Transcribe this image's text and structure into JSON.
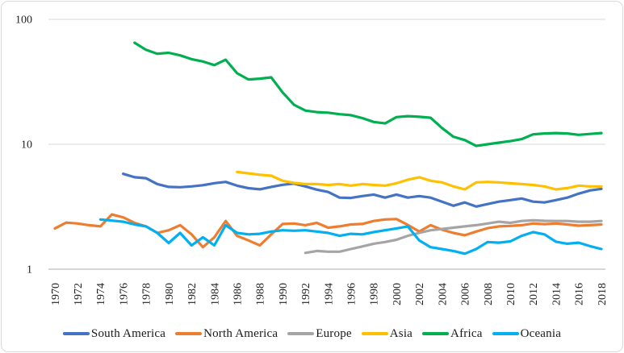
{
  "colors": {
    "background": "#ffffff",
    "frame_border": "#d9d9d9",
    "gridline": "#d9d9d9",
    "axis_line": "#bfbfbf",
    "tick_text": "#1f1f1f"
  },
  "chart_data": {
    "type": "line",
    "title": "",
    "x_axis": {
      "label": "",
      "range": [
        1970,
        2018
      ],
      "tick_step": 2,
      "tick_labels": [
        "1970",
        "1972",
        "1974",
        "1976",
        "1978",
        "1980",
        "1982",
        "1984",
        "1986",
        "1988",
        "1990",
        "1992",
        "1994",
        "1996",
        "1998",
        "2000",
        "2002",
        "2004",
        "2006",
        "2008",
        "2010",
        "2012",
        "2014",
        "2016",
        "2018"
      ],
      "tick_label_rotation": -90
    },
    "y_axis": {
      "label": "",
      "scale": "log10",
      "range": [
        1,
        100
      ],
      "tick_labels": [
        "1",
        "10",
        "100"
      ]
    },
    "grid": {
      "horizontal": true,
      "vertical": false
    },
    "legend": {
      "position": "bottom"
    },
    "series": [
      {
        "name": "South America",
        "color": "#4472C4",
        "start_year": 1976,
        "values": [
          5.8,
          5.45,
          5.35,
          4.8,
          4.56,
          4.53,
          4.6,
          4.7,
          4.88,
          5.0,
          4.66,
          4.45,
          4.36,
          4.56,
          4.74,
          4.84,
          4.6,
          4.33,
          4.15,
          3.74,
          3.72,
          3.85,
          3.96,
          3.74,
          3.96,
          3.74,
          3.85,
          3.74,
          3.47,
          3.22,
          3.42,
          3.17,
          3.32,
          3.47,
          3.57,
          3.68,
          3.47,
          3.42,
          3.57,
          3.74,
          4.02,
          4.27,
          4.4
        ]
      },
      {
        "name": "North America",
        "color": "#ED7D31",
        "start_year": 1970,
        "values": [
          2.12,
          2.36,
          2.32,
          2.25,
          2.2,
          2.74,
          2.6,
          2.35,
          2.2,
          1.95,
          2.05,
          2.25,
          1.9,
          1.5,
          1.8,
          2.43,
          1.85,
          1.7,
          1.55,
          1.9,
          2.3,
          2.32,
          2.25,
          2.35,
          2.15,
          2.2,
          2.28,
          2.3,
          2.43,
          2.5,
          2.52,
          2.26,
          2.0,
          2.25,
          2.07,
          1.95,
          1.87,
          2.0,
          2.13,
          2.2,
          2.22,
          2.25,
          2.32,
          2.29,
          2.32,
          2.28,
          2.23,
          2.25,
          2.28
        ]
      },
      {
        "name": "Europe",
        "color": "#A5A5A5",
        "start_year": 1992,
        "values": [
          1.35,
          1.4,
          1.38,
          1.38,
          1.45,
          1.52,
          1.6,
          1.65,
          1.72,
          1.85,
          1.95,
          2.05,
          2.1,
          2.15,
          2.2,
          2.25,
          2.32,
          2.4,
          2.35,
          2.43,
          2.46,
          2.44,
          2.43,
          2.43,
          2.4,
          2.4,
          2.43
        ]
      },
      {
        "name": "Asia",
        "color": "#FFC000",
        "start_year": 1986,
        "values": [
          6.0,
          5.85,
          5.7,
          5.6,
          5.1,
          4.9,
          4.8,
          4.8,
          4.72,
          4.8,
          4.67,
          4.8,
          4.72,
          4.67,
          4.87,
          5.2,
          5.45,
          5.1,
          4.95,
          4.6,
          4.35,
          4.95,
          5.0,
          4.95,
          4.87,
          4.8,
          4.72,
          4.6,
          4.35,
          4.46,
          4.67,
          4.6,
          4.6
        ]
      },
      {
        "name": "Africa",
        "color": "#00B050",
        "start_year": 1977,
        "values": [
          65,
          57,
          53,
          54,
          51.5,
          48,
          46,
          43,
          47.5,
          37,
          33,
          33.5,
          34.3,
          26,
          20.7,
          18.6,
          18.1,
          17.9,
          17.4,
          17.1,
          16.2,
          15.1,
          14.7,
          16.5,
          16.8,
          16.6,
          16.3,
          13.5,
          11.5,
          10.8,
          9.7,
          10.0,
          10.3,
          10.6,
          11.0,
          12.0,
          12.2,
          12.3,
          12.2,
          11.9,
          12.1,
          12.3
        ]
      },
      {
        "name": "Oceania",
        "color": "#00B0F0",
        "start_year": 1974,
        "values": [
          2.5,
          2.45,
          2.4,
          2.28,
          2.2,
          1.95,
          1.62,
          1.95,
          1.55,
          1.8,
          1.55,
          2.25,
          1.95,
          1.9,
          1.92,
          2.0,
          2.05,
          2.03,
          2.05,
          2.0,
          1.95,
          1.85,
          1.92,
          1.9,
          1.98,
          2.05,
          2.12,
          2.2,
          1.7,
          1.5,
          1.45,
          1.4,
          1.33,
          1.45,
          1.65,
          1.63,
          1.67,
          1.85,
          1.98,
          1.9,
          1.66,
          1.6,
          1.63,
          1.53,
          1.45
        ]
      }
    ]
  }
}
